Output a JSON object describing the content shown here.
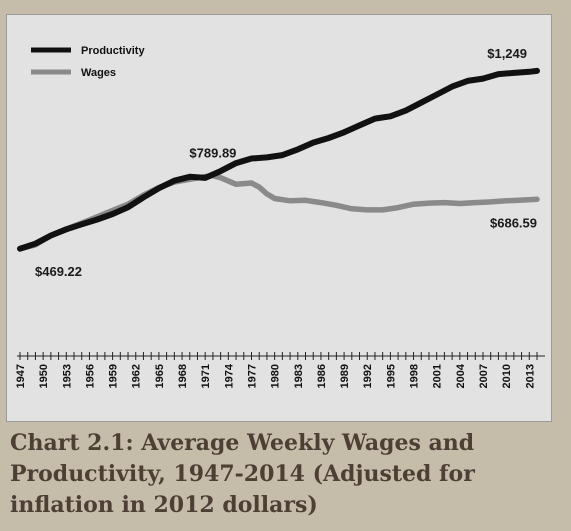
{
  "caption": "Chart 2.1: Average Weekly Wages and Productivity, 1947-2014 (Adjusted for inflation in 2012 dollars)",
  "chart_data": {
    "type": "line",
    "title": "",
    "xlabel": "",
    "ylabel": "",
    "xlim": [
      1947,
      2014
    ],
    "ylim": [
      0,
      1450
    ],
    "grid": false,
    "legend_position": "top-left",
    "x_tick_labels": [
      "1947",
      "1950",
      "1953",
      "1956",
      "1959",
      "1962",
      "1965",
      "1968",
      "1971",
      "1974",
      "1977",
      "1980",
      "1983",
      "1986",
      "1989",
      "1992",
      "1995",
      "1998",
      "2001",
      "2004",
      "2007",
      "2010",
      "2013"
    ],
    "series": [
      {
        "name": "Productivity",
        "color": "#111111",
        "x": [
          1947,
          1949,
          1951,
          1953,
          1955,
          1957,
          1959,
          1961,
          1963,
          1965,
          1967,
          1969,
          1971,
          1973,
          1975,
          1977,
          1979,
          1981,
          1983,
          1985,
          1987,
          1989,
          1991,
          1993,
          1995,
          1997,
          1999,
          2001,
          2003,
          2005,
          2007,
          2009,
          2011,
          2013,
          2014
        ],
        "values": [
          470,
          492,
          528,
          555,
          577,
          598,
          622,
          652,
          695,
          735,
          768,
          785,
          780,
          810,
          845,
          865,
          870,
          880,
          905,
          935,
          955,
          980,
          1010,
          1040,
          1050,
          1075,
          1110,
          1145,
          1180,
          1205,
          1215,
          1235,
          1240,
          1245,
          1249
        ]
      },
      {
        "name": "Wages",
        "color": "#8a8a8a",
        "x": [
          1947,
          1949,
          1951,
          1953,
          1955,
          1957,
          1959,
          1961,
          1963,
          1965,
          1967,
          1969,
          1971,
          1972,
          1973,
          1975,
          1977,
          1978,
          1979,
          1980,
          1982,
          1984,
          1986,
          1988,
          1990,
          1992,
          1994,
          1996,
          1998,
          2000,
          2002,
          2004,
          2006,
          2008,
          2010,
          2012,
          2014
        ],
        "values": [
          469,
          487,
          528,
          556,
          582,
          610,
          638,
          665,
          705,
          738,
          762,
          774,
          786,
          789.89,
          781,
          752,
          758,
          740,
          710,
          690,
          680,
          682,
          672,
          660,
          645,
          640,
          640,
          650,
          665,
          670,
          672,
          668,
          672,
          675,
          680,
          683,
          686.59
        ]
      }
    ],
    "annotations": [
      {
        "text": "$469.22",
        "x": 1947,
        "y": 469.22
      },
      {
        "text": "$789.89",
        "x": 1972,
        "y": 789.89
      },
      {
        "text": "$1,249",
        "x": 2014,
        "y": 1249
      },
      {
        "text": "$686.59",
        "x": 2014,
        "y": 686.59
      }
    ]
  }
}
